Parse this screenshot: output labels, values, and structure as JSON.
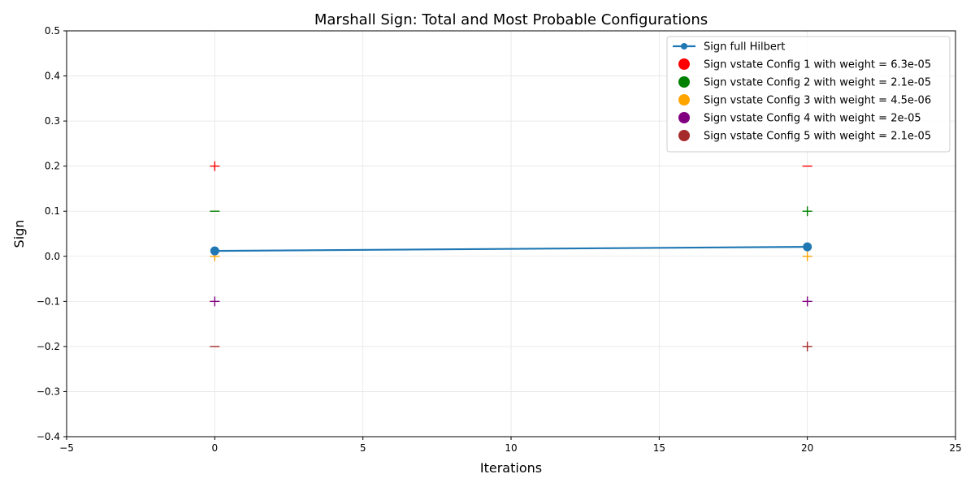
{
  "chart_data": {
    "type": "line",
    "title": "Marshall Sign: Total and Most Probable Configurations",
    "xlabel": "Iterations",
    "ylabel": "Sign",
    "xlim": [
      -5,
      25
    ],
    "ylim": [
      -0.4,
      0.5
    ],
    "xticks": [
      -5,
      0,
      5,
      10,
      15,
      20,
      25
    ],
    "yticks": [
      -0.4,
      -0.3,
      -0.2,
      -0.1,
      0.0,
      0.1,
      0.2,
      0.3,
      0.4,
      0.5
    ],
    "xtick_labels": [
      "−5",
      "0",
      "5",
      "10",
      "15",
      "20",
      "25"
    ],
    "ytick_labels": [
      "−0.4",
      "−0.3",
      "−0.2",
      "−0.1",
      "0.0",
      "0.1",
      "0.2",
      "0.3",
      "0.4",
      "0.5"
    ],
    "grid": true,
    "legend_position": "top-right",
    "series": [
      {
        "name": "Sign full Hilbert",
        "kind": "line",
        "color": "#1f77b4",
        "x": [
          0,
          20
        ],
        "y": [
          0.012,
          0.021
        ]
      },
      {
        "name": "Sign vstate Config 1 with weight = 6.3e-05",
        "kind": "markers",
        "color": "#ff0000",
        "points": [
          {
            "x": 0,
            "y": 0.2,
            "marker": "+"
          },
          {
            "x": 20,
            "y": 0.2,
            "marker": "−"
          }
        ]
      },
      {
        "name": "Sign vstate Config 2 with weight = 2.1e-05",
        "kind": "markers",
        "color": "#008000",
        "points": [
          {
            "x": 0,
            "y": 0.1,
            "marker": "−"
          },
          {
            "x": 20,
            "y": 0.1,
            "marker": "+"
          }
        ]
      },
      {
        "name": "Sign vstate Config 3 with weight = 4.5e-06",
        "kind": "markers",
        "color": "#ffa500",
        "points": [
          {
            "x": 0,
            "y": 0.0,
            "marker": "+"
          },
          {
            "x": 20,
            "y": 0.0,
            "marker": "+"
          }
        ]
      },
      {
        "name": "Sign vstate Config 4 with weight = 2e-05",
        "kind": "markers",
        "color": "#800080",
        "points": [
          {
            "x": 0,
            "y": -0.1,
            "marker": "+"
          },
          {
            "x": 20,
            "y": -0.1,
            "marker": "+"
          }
        ]
      },
      {
        "name": "Sign vstate Config 5 with weight = 2.1e-05",
        "kind": "markers",
        "color": "#a52a2a",
        "points": [
          {
            "x": 0,
            "y": -0.2,
            "marker": "−"
          },
          {
            "x": 20,
            "y": -0.2,
            "marker": "+"
          }
        ]
      }
    ]
  }
}
